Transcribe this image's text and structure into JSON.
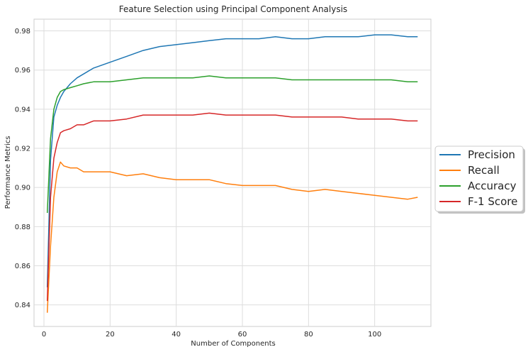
{
  "chart_data": {
    "type": "line",
    "title": "Feature Selection using Principal Component Analysis",
    "xlabel": "Number of Components",
    "ylabel": "Performance Metrics",
    "xlim": [
      -3,
      117
    ],
    "ylim": [
      0.829,
      0.986
    ],
    "xticks": [
      0,
      20,
      40,
      60,
      80,
      100
    ],
    "yticks": [
      0.84,
      0.86,
      0.88,
      0.9,
      0.92,
      0.94,
      0.96,
      0.98
    ],
    "ytick_labels": [
      "0.84",
      "0.86",
      "0.88",
      "0.90",
      "0.92",
      "0.94",
      "0.96",
      "0.98"
    ],
    "grid": true,
    "legend_position": "right, outside plot",
    "x": [
      1,
      2,
      3,
      4,
      5,
      6,
      8,
      10,
      12,
      15,
      20,
      25,
      30,
      35,
      40,
      45,
      50,
      55,
      60,
      65,
      70,
      75,
      80,
      85,
      90,
      95,
      100,
      105,
      110,
      113
    ],
    "series": [
      {
        "name": "Precision",
        "color": "#1f77b4",
        "values": [
          0.849,
          0.914,
          0.936,
          0.942,
          0.946,
          0.949,
          0.953,
          0.956,
          0.958,
          0.961,
          0.964,
          0.967,
          0.97,
          0.972,
          0.973,
          0.974,
          0.975,
          0.976,
          0.976,
          0.976,
          0.977,
          0.976,
          0.976,
          0.977,
          0.977,
          0.977,
          0.978,
          0.978,
          0.977,
          0.977
        ]
      },
      {
        "name": "Recall",
        "color": "#ff7f0e",
        "values": [
          0.836,
          0.87,
          0.895,
          0.908,
          0.913,
          0.911,
          0.91,
          0.91,
          0.908,
          0.908,
          0.908,
          0.906,
          0.907,
          0.905,
          0.904,
          0.904,
          0.904,
          0.902,
          0.901,
          0.901,
          0.901,
          0.899,
          0.898,
          0.899,
          0.898,
          0.897,
          0.896,
          0.895,
          0.894,
          0.895
        ]
      },
      {
        "name": "Accuracy",
        "color": "#2ca02c",
        "values": [
          0.887,
          0.925,
          0.94,
          0.946,
          0.949,
          0.95,
          0.951,
          0.952,
          0.953,
          0.954,
          0.954,
          0.955,
          0.956,
          0.956,
          0.956,
          0.956,
          0.957,
          0.956,
          0.956,
          0.956,
          0.956,
          0.955,
          0.955,
          0.955,
          0.955,
          0.955,
          0.955,
          0.955,
          0.954,
          0.954
        ]
      },
      {
        "name": "F-1 Score",
        "color": "#d62728",
        "values": [
          0.842,
          0.895,
          0.915,
          0.923,
          0.928,
          0.929,
          0.93,
          0.932,
          0.932,
          0.934,
          0.934,
          0.935,
          0.937,
          0.937,
          0.937,
          0.937,
          0.938,
          0.937,
          0.937,
          0.937,
          0.937,
          0.936,
          0.936,
          0.936,
          0.936,
          0.935,
          0.935,
          0.935,
          0.934,
          0.934
        ]
      }
    ]
  }
}
